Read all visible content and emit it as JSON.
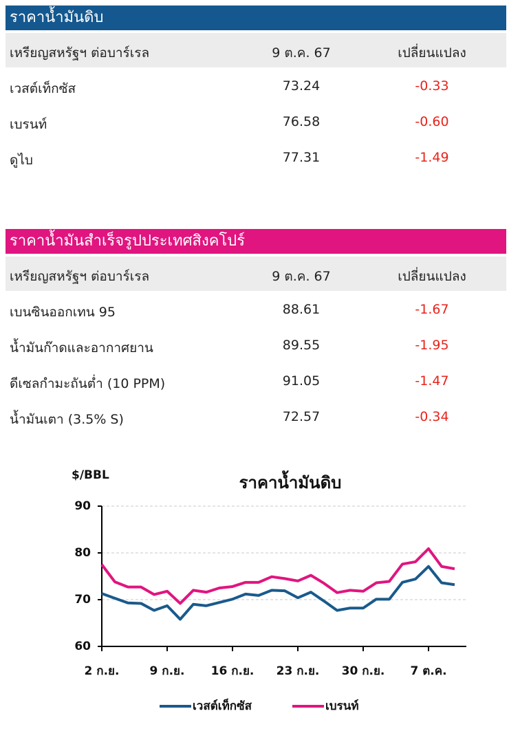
{
  "tables": [
    {
      "title": "ราคาน้ำมันดิบ",
      "header": [
        "เหรียญสหรัฐฯ ต่อบาร์เรล",
        "9 ต.ค. 67",
        "เปลี่ยนแปลง"
      ],
      "rows": [
        [
          "เวสต์เท็กซัส",
          "73.24",
          "-0.33"
        ],
        [
          "เบรนท์",
          "76.58",
          "-0.60"
        ],
        [
          "ดูไบ",
          "77.31",
          "-1.49"
        ]
      ]
    },
    {
      "title": "ราคาน้ำมันสำเร็จรูปประเทศสิงคโปร์",
      "header": [
        "เหรียญสหรัฐฯ ต่อบาร์เรล",
        "9 ต.ค. 67",
        "เปลี่ยนแปลง"
      ],
      "rows": [
        [
          "เบนซินออกเทน 95",
          "88.61",
          "-1.67"
        ],
        [
          "น้ำมันก๊าดและอากาศยาน",
          "89.55",
          "-1.95"
        ],
        [
          "ดีเซลกำมะถันต่ำ (10 PPM)",
          "91.05",
          "-1.47"
        ],
        [
          "น้ำมันเตา (3.5% S)",
          "72.57",
          "-0.34"
        ]
      ]
    }
  ],
  "chart_data": {
    "type": "line",
    "title": "ราคาน้ำมันดิบ",
    "ylabel": "$/BBL",
    "categories": [
      "2 ก.ย.",
      null,
      null,
      null,
      null,
      "9 ก.ย.",
      null,
      null,
      null,
      null,
      "16 ก.ย.",
      null,
      null,
      null,
      null,
      "23 ก.ย.",
      null,
      null,
      null,
      null,
      "30 ก.ย.",
      null,
      null,
      null,
      null,
      "7 ต.ค.",
      null,
      null
    ],
    "series": [
      {
        "name": "เวสต์เท็กซัส",
        "color": "#1a5a8c",
        "values": [
          71.3,
          70.3,
          69.3,
          69.2,
          67.7,
          68.7,
          65.8,
          69.0,
          68.7,
          69.4,
          70.1,
          71.2,
          70.9,
          72.0,
          71.9,
          70.4,
          71.6,
          69.7,
          67.7,
          68.2,
          68.2,
          70.1,
          70.1,
          73.7,
          74.4,
          77.1,
          73.6,
          73.2
        ]
      },
      {
        "name": "เบรนท์",
        "color": "#e0157f",
        "values": [
          77.5,
          73.8,
          72.7,
          72.7,
          71.1,
          71.8,
          69.2,
          72.0,
          71.6,
          72.5,
          72.8,
          73.7,
          73.7,
          74.9,
          74.5,
          74.0,
          75.2,
          73.5,
          71.5,
          72.0,
          71.8,
          73.6,
          73.9,
          77.6,
          78.1,
          80.9,
          77.1,
          76.6
        ]
      }
    ],
    "ylim": [
      60,
      90
    ],
    "yticks": [
      60,
      70,
      80,
      90
    ],
    "grid": true
  }
}
